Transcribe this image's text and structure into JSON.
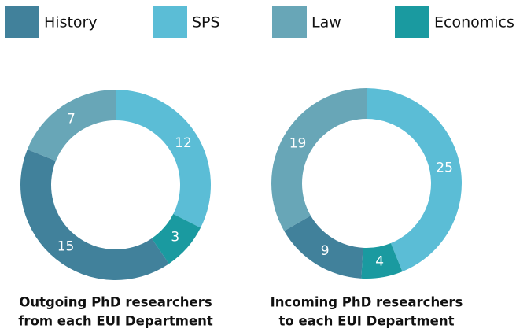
{
  "legend": {
    "items": [
      {
        "name": "History",
        "color": "#41819b"
      },
      {
        "name": "SPS",
        "color": "#5bbdd6"
      },
      {
        "name": "Law",
        "color": "#68a6b7"
      },
      {
        "name": "Economics",
        "color": "#1a9aa0"
      }
    ]
  },
  "chart_data": [
    {
      "type": "donut",
      "title": [
        "Outgoing PhD researchers",
        "from each EUI Department"
      ],
      "values": [
        15,
        12,
        7,
        3
      ]
    },
    {
      "type": "donut",
      "title": [
        "Incoming PhD researchers",
        "to each EUI Department"
      ],
      "values": [
        9,
        25,
        19,
        4
      ]
    }
  ]
}
